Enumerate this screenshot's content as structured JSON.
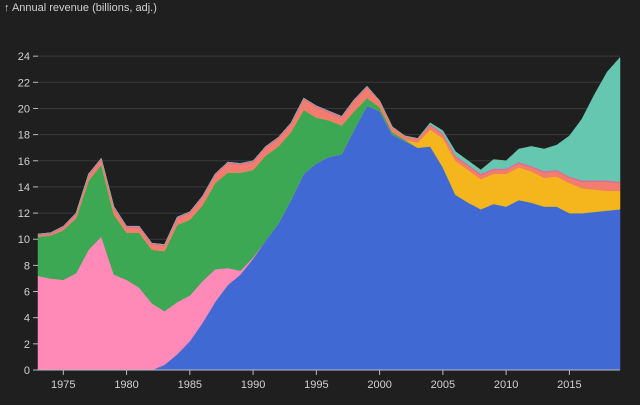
{
  "chart_data": {
    "type": "area",
    "stacked": true,
    "title": "",
    "ylabel": "↑ Annual revenue (billions, adj.)",
    "xlabel": "",
    "xlim": [
      1973,
      2019
    ],
    "ylim": [
      0,
      26
    ],
    "x_ticks": [
      1975,
      1980,
      1985,
      1990,
      1995,
      2000,
      2005,
      2010,
      2015
    ],
    "y_ticks": [
      0,
      2,
      4,
      6,
      8,
      10,
      12,
      14,
      16,
      18,
      20,
      22,
      24
    ],
    "grid": "horizontal",
    "background": "#1f1f1f",
    "x": [
      1973,
      1974,
      1975,
      1976,
      1977,
      1978,
      1979,
      1980,
      1981,
      1982,
      1983,
      1984,
      1985,
      1986,
      1987,
      1988,
      1989,
      1990,
      1991,
      1992,
      1993,
      1994,
      1995,
      1996,
      1997,
      1998,
      1999,
      2000,
      2001,
      2002,
      2003,
      2004,
      2005,
      2006,
      2007,
      2008,
      2009,
      2010,
      2011,
      2012,
      2013,
      2014,
      2015,
      2016,
      2017,
      2018,
      2019
    ],
    "series": [
      {
        "color": "#4169d4",
        "values": [
          0,
          0,
          0,
          0,
          0,
          0,
          0,
          0,
          0,
          0,
          0.4,
          1.2,
          2.2,
          3.6,
          5.2,
          6.5,
          7.3,
          8.5,
          9.9,
          11.2,
          13.0,
          15.0,
          15.8,
          16.3,
          16.5,
          18.4,
          20.2,
          19.8,
          18.0,
          17.5,
          17.0,
          17.1,
          15.5,
          13.4,
          12.8,
          12.3,
          12.7,
          12.5,
          13.0,
          12.8,
          12.5,
          12.5,
          12.0,
          12.0,
          12.1,
          12.2,
          12.3
        ]
      },
      {
        "color": "#ff8ab8",
        "values": [
          7.2,
          7.0,
          6.9,
          7.4,
          9.2,
          10.2,
          7.3,
          6.9,
          6.3,
          5.1,
          4.1,
          4.0,
          3.5,
          3.2,
          2.5,
          1.3,
          0.3,
          0.1,
          0,
          0,
          0,
          0,
          0,
          0,
          0,
          0,
          0,
          0,
          0,
          0,
          0,
          0,
          0,
          0,
          0,
          0,
          0,
          0,
          0,
          0,
          0,
          0,
          0,
          0,
          0,
          0,
          0
        ]
      },
      {
        "color": "#3da854",
        "values": [
          3.0,
          3.3,
          3.8,
          4.2,
          5.3,
          5.5,
          4.6,
          3.6,
          4.2,
          4.1,
          4.6,
          5.9,
          5.8,
          5.8,
          6.6,
          7.3,
          7.5,
          6.7,
          6.5,
          5.9,
          5.2,
          4.9,
          3.5,
          2.8,
          2.2,
          1.4,
          0.6,
          0.3,
          0.2,
          0.1,
          0,
          0,
          0,
          0,
          0,
          0,
          0,
          0,
          0,
          0,
          0,
          0,
          0,
          0,
          0,
          0,
          0
        ]
      },
      {
        "color": "#f5b51c",
        "values": [
          0,
          0,
          0,
          0,
          0,
          0,
          0,
          0,
          0,
          0,
          0,
          0,
          0,
          0,
          0,
          0,
          0,
          0,
          0,
          0,
          0,
          0,
          0,
          0,
          0,
          0,
          0,
          0,
          0,
          0,
          0.4,
          1.3,
          2.2,
          2.6,
          2.5,
          2.3,
          2.3,
          2.5,
          2.5,
          2.4,
          2.2,
          2.3,
          2.3,
          1.9,
          1.7,
          1.5,
          1.4
        ]
      },
      {
        "color": "#f27c6e",
        "values": [
          0.1,
          0.1,
          0.2,
          0.3,
          0.4,
          0.4,
          0.5,
          0.4,
          0.4,
          0.4,
          0.4,
          0.5,
          0.5,
          0.6,
          0.6,
          0.7,
          0.6,
          0.6,
          0.6,
          0.6,
          0.6,
          0.8,
          0.8,
          0.6,
          0.6,
          0.8,
          0.8,
          0.5,
          0.4,
          0.3,
          0.3,
          0.3,
          0.3,
          0.3,
          0.3,
          0.3,
          0.3,
          0.3,
          0.3,
          0.3,
          0.4,
          0.4,
          0.4,
          0.5,
          0.6,
          0.7,
          0.6
        ]
      },
      {
        "color": "#e06a9a",
        "values": [
          0.1,
          0.1,
          0.1,
          0.1,
          0.1,
          0.1,
          0.1,
          0.1,
          0.1,
          0.1,
          0.1,
          0.1,
          0.1,
          0.1,
          0.1,
          0.1,
          0.1,
          0.1,
          0.1,
          0.1,
          0.1,
          0.1,
          0.1,
          0.1,
          0.1,
          0.1,
          0.1,
          0,
          0,
          0,
          0,
          0.1,
          0.1,
          0.1,
          0.1,
          0.1,
          0.1,
          0.1,
          0.1,
          0.1,
          0.1,
          0.1,
          0.1,
          0.1,
          0.1,
          0.1,
          0.1
        ]
      },
      {
        "color": "#66c7b0",
        "values": [
          0,
          0,
          0,
          0,
          0,
          0,
          0,
          0,
          0,
          0,
          0,
          0,
          0,
          0,
          0,
          0,
          0,
          0,
          0,
          0,
          0,
          0,
          0,
          0,
          0,
          0,
          0,
          0,
          0,
          0,
          0,
          0.1,
          0.2,
          0.3,
          0.3,
          0.3,
          0.7,
          0.6,
          1.0,
          1.5,
          1.7,
          1.9,
          3.1,
          4.7,
          6.6,
          8.3,
          9.5
        ]
      }
    ]
  }
}
